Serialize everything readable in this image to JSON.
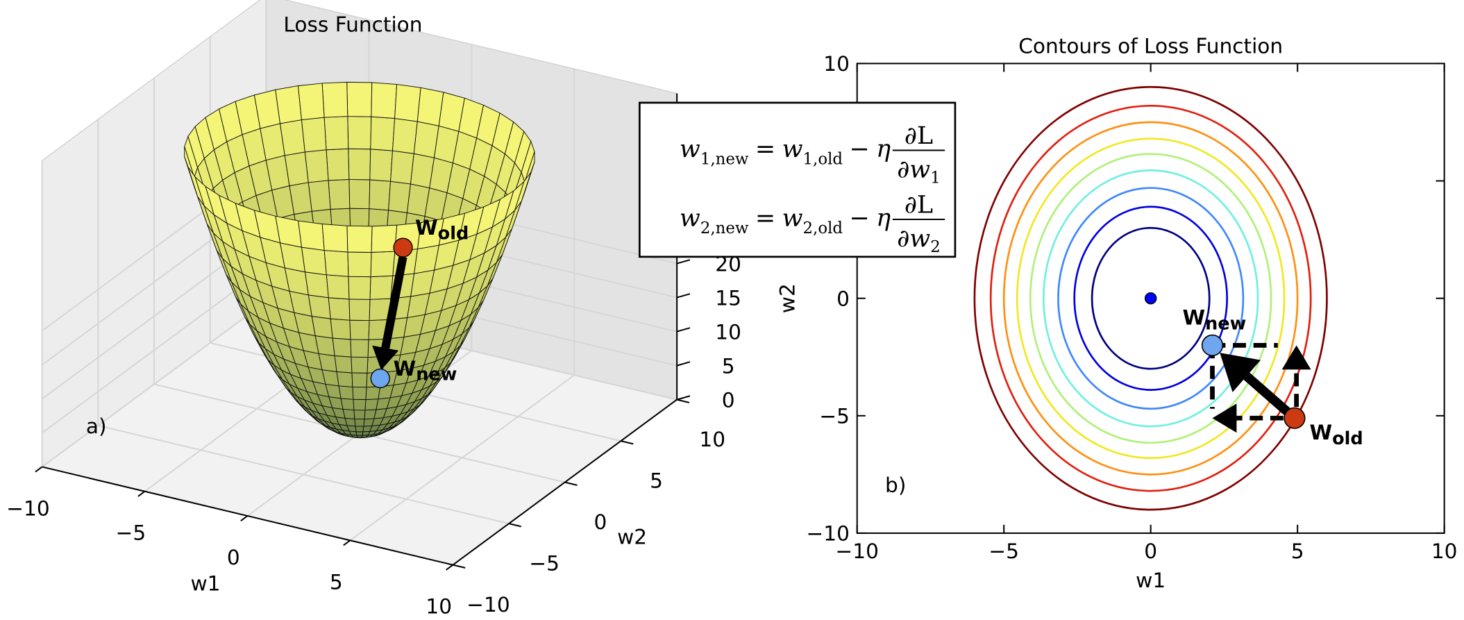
{
  "chart_data": [
    {
      "type": "surface3d",
      "title": "Loss Function",
      "xlabel": "w1",
      "ylabel": "w2",
      "xlim": [
        -10,
        10
      ],
      "ylim": [
        -10,
        10
      ],
      "zlim": [
        0,
        45
      ],
      "xticks": [
        {
          "value": -10,
          "label": "−10"
        },
        {
          "value": -5,
          "label": "−5"
        },
        0,
        5,
        10
      ],
      "yticks": [
        {
          "value": -10,
          "label": "−10"
        },
        {
          "value": -5,
          "label": "−5"
        },
        0,
        5,
        10
      ],
      "zticks": [
        0,
        5,
        10,
        15,
        20
      ],
      "surface": {
        "radius": 7.5,
        "height": 41
      },
      "panel_label": "a)",
      "points": [
        {
          "name": "W",
          "sub": "old",
          "x": 4.9,
          "y": -5.1,
          "z": 37,
          "color": "#cc3a12"
        },
        {
          "name": "W",
          "sub": "new",
          "x": 2.1,
          "y": -2,
          "z": 12,
          "color": "#6ea6f0"
        }
      ]
    },
    {
      "type": "contour",
      "title": "Contours of Loss Function",
      "xlabel": "w1",
      "ylabel": "w2",
      "xlim": [
        -10,
        10
      ],
      "ylim": [
        -10,
        10
      ],
      "xticks": [
        {
          "value": -10,
          "label": "−10"
        },
        {
          "value": -5,
          "label": "−5"
        },
        0,
        5,
        10
      ],
      "yticks": [
        {
          "value": -10,
          "label": "−10"
        },
        {
          "value": -5,
          "label": "−5"
        },
        0,
        5,
        10
      ],
      "contours": [
        {
          "rx": 2,
          "ry": 3,
          "color": "#00007f"
        },
        {
          "rx": 2.6,
          "ry": 3.9,
          "color": "#0000e0"
        },
        {
          "rx": 3.15,
          "ry": 4.7,
          "color": "#3f88ff"
        },
        {
          "rx": 3.65,
          "ry": 5.45,
          "color": "#6ff0e0"
        },
        {
          "rx": 4.1,
          "ry": 6.15,
          "color": "#b0f07a"
        },
        {
          "rx": 4.55,
          "ry": 6.8,
          "color": "#f0e820"
        },
        {
          "rx": 5,
          "ry": 7.5,
          "color": "#ff9010"
        },
        {
          "rx": 5.45,
          "ry": 8.2,
          "color": "#e02010"
        },
        {
          "rx": 6,
          "ry": 9,
          "color": "#7f0000"
        }
      ],
      "center": {
        "x": 0,
        "y": 0,
        "color": "#0000ff"
      },
      "panel_label": "b)",
      "points": [
        {
          "name": "W",
          "sub": "old",
          "x": 4.9,
          "y": -5.1,
          "color": "#cc3a12"
        },
        {
          "name": "W",
          "sub": "new",
          "x": 2.1,
          "y": -2,
          "color": "#6ea6f0"
        }
      ]
    }
  ],
  "equations": [
    {
      "terms": [
        {
          "text": "w",
          "sub": "1,new"
        },
        {
          "text": "="
        },
        {
          "text": "w",
          "sub": "1,old"
        },
        {
          "text": "−"
        },
        {
          "text": "η"
        }
      ],
      "numerator": "∂L",
      "denominator": {
        "text": "∂w",
        "sub": "1"
      }
    },
    {
      "terms": [
        {
          "text": "w",
          "sub": "2,new"
        },
        {
          "text": "="
        },
        {
          "text": "w",
          "sub": "2,old"
        },
        {
          "text": "−"
        },
        {
          "text": "η"
        }
      ],
      "numerator": "∂L",
      "denominator": {
        "text": "∂w",
        "sub": "2"
      }
    }
  ]
}
